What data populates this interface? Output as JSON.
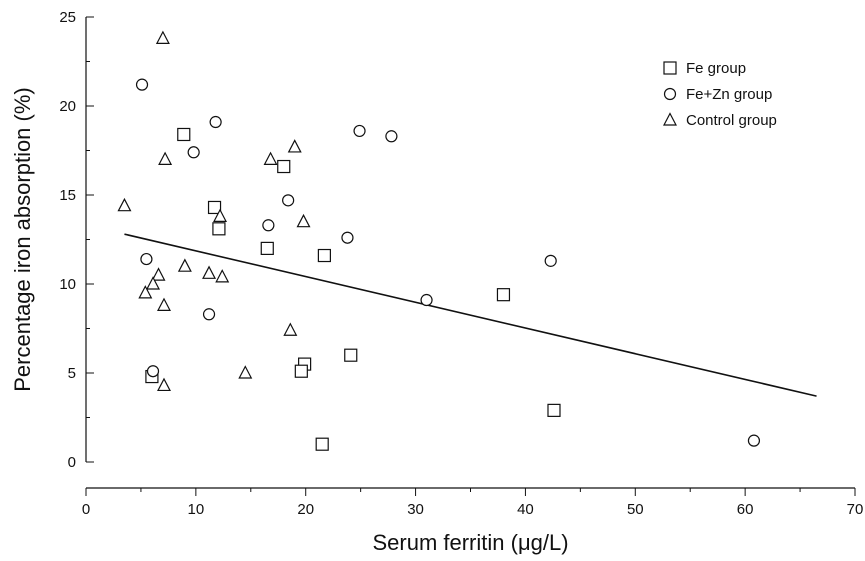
{
  "chart_data": {
    "type": "scatter",
    "xlabel": "Serum ferritin (μg/L)",
    "ylabel": "Percentage iron absorption (%)",
    "xlim": [
      0,
      70
    ],
    "ylim": [
      0,
      25
    ],
    "x_ticks": [
      0,
      10,
      20,
      30,
      40,
      50,
      60,
      70
    ],
    "y_ticks": [
      0,
      5,
      10,
      15,
      20,
      25
    ],
    "grid": false,
    "legend_position": "top-right",
    "series": [
      {
        "name": "Fe group",
        "marker": "square",
        "points": [
          {
            "x": 8.9,
            "y": 18.4
          },
          {
            "x": 18.0,
            "y": 16.6
          },
          {
            "x": 11.7,
            "y": 14.3
          },
          {
            "x": 12.1,
            "y": 13.1
          },
          {
            "x": 16.5,
            "y": 12.0
          },
          {
            "x": 21.7,
            "y": 11.6
          },
          {
            "x": 38.0,
            "y": 9.4
          },
          {
            "x": 24.1,
            "y": 6.0
          },
          {
            "x": 19.9,
            "y": 5.5
          },
          {
            "x": 19.6,
            "y": 5.1
          },
          {
            "x": 6.0,
            "y": 4.8
          },
          {
            "x": 42.6,
            "y": 2.9
          },
          {
            "x": 21.5,
            "y": 1.0
          }
        ]
      },
      {
        "name": "Fe+Zn group",
        "marker": "circle",
        "points": [
          {
            "x": 5.1,
            "y": 21.2
          },
          {
            "x": 11.8,
            "y": 19.1
          },
          {
            "x": 24.9,
            "y": 18.6
          },
          {
            "x": 27.8,
            "y": 18.3
          },
          {
            "x": 9.8,
            "y": 17.4
          },
          {
            "x": 18.4,
            "y": 14.7
          },
          {
            "x": 16.6,
            "y": 13.3
          },
          {
            "x": 23.8,
            "y": 12.6
          },
          {
            "x": 5.5,
            "y": 11.4
          },
          {
            "x": 42.3,
            "y": 11.3
          },
          {
            "x": 31.0,
            "y": 9.1
          },
          {
            "x": 11.2,
            "y": 8.3
          },
          {
            "x": 6.1,
            "y": 5.1
          },
          {
            "x": 60.8,
            "y": 1.2
          }
        ]
      },
      {
        "name": "Control group",
        "marker": "triangle",
        "points": [
          {
            "x": 7.0,
            "y": 23.8
          },
          {
            "x": 19.0,
            "y": 17.7
          },
          {
            "x": 7.2,
            "y": 17.0
          },
          {
            "x": 16.8,
            "y": 17.0
          },
          {
            "x": 3.5,
            "y": 14.4
          },
          {
            "x": 12.2,
            "y": 13.8
          },
          {
            "x": 19.8,
            "y": 13.5
          },
          {
            "x": 9.0,
            "y": 11.0
          },
          {
            "x": 11.2,
            "y": 10.6
          },
          {
            "x": 6.6,
            "y": 10.5
          },
          {
            "x": 12.4,
            "y": 10.4
          },
          {
            "x": 6.1,
            "y": 10.0
          },
          {
            "x": 5.4,
            "y": 9.5
          },
          {
            "x": 7.1,
            "y": 8.8
          },
          {
            "x": 18.6,
            "y": 7.4
          },
          {
            "x": 14.5,
            "y": 5.0
          },
          {
            "x": 7.1,
            "y": 4.3
          }
        ]
      }
    ],
    "trendline": {
      "x": [
        3.5,
        66.5
      ],
      "y": [
        12.8,
        3.7
      ]
    }
  }
}
